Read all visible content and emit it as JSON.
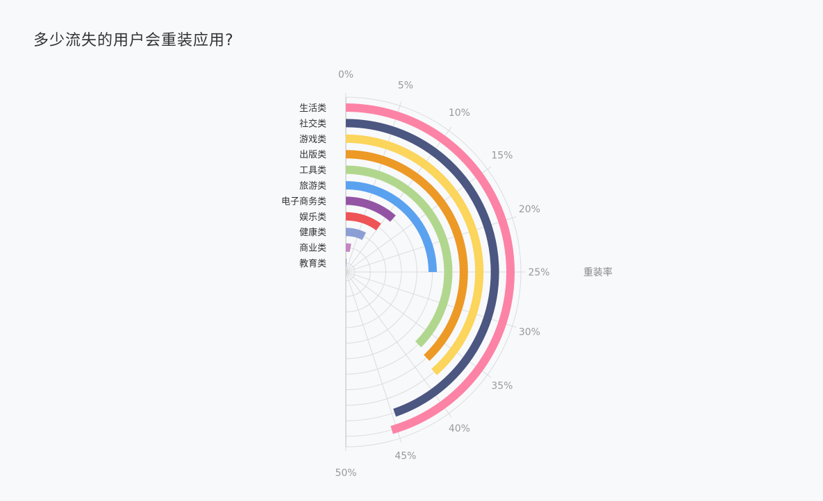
{
  "chart_data": {
    "type": "bar",
    "polar": true,
    "title": "多少流失的用户会重装应用?",
    "axis_name": "重装率",
    "angle_ticks": [
      "0%",
      "5%",
      "10%",
      "15%",
      "20%",
      "25%",
      "30%",
      "35%",
      "40%",
      "45%",
      "50%"
    ],
    "angle_range": [
      0,
      50
    ],
    "categories": [
      "生活类",
      "社交类",
      "游戏类",
      "出版类",
      "工具类",
      "旅游类",
      "电子商务类",
      "娱乐类",
      "健康类",
      "商业类",
      "教育类"
    ],
    "values": [
      45.5,
      44.7,
      38.5,
      38.0,
      37.5,
      25.0,
      11.5,
      10.0,
      7.5,
      3.0,
      0.5
    ],
    "colors": [
      "#fc83a6",
      "#4b5681",
      "#fbd55c",
      "#ec9926",
      "#b1d78e",
      "#5aa2f0",
      "#9454a4",
      "#ee5355",
      "#8c9fd4",
      "#c486c0",
      "#4156a6"
    ],
    "grid": true
  }
}
